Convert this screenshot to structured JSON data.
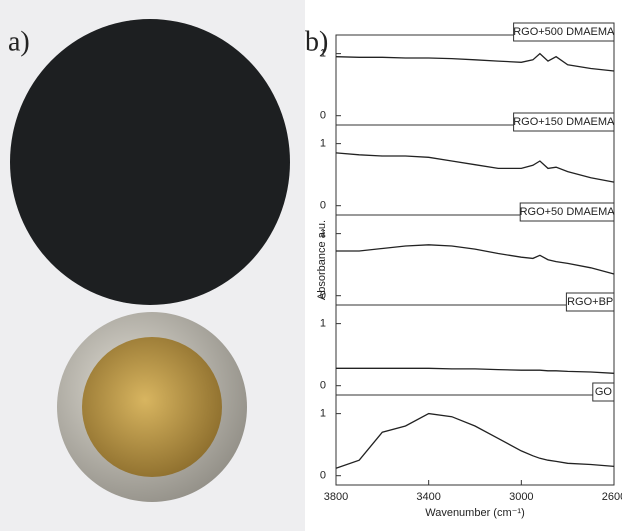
{
  "panel_labels": [
    "a)",
    "b)"
  ],
  "chart_data": {
    "type": "line",
    "xlabel": "Wavenumber (cm⁻¹)",
    "ylabel": "Absorbance a.u.",
    "x": [
      3800,
      3700,
      3600,
      3500,
      3400,
      3300,
      3200,
      3100,
      3000,
      2950,
      2920,
      2885,
      2850,
      2800,
      2700,
      2600
    ],
    "xlim": [
      3800,
      2600
    ],
    "xticks": [
      3800,
      3400,
      3000,
      2600
    ],
    "ylim": [
      -0.15,
      1.3
    ],
    "yticks": [
      0,
      1
    ],
    "series": [
      {
        "name": "RGO+500 DMAEMA",
        "color": "#222222",
        "values": [
          0.95,
          0.94,
          0.94,
          0.93,
          0.93,
          0.92,
          0.9,
          0.88,
          0.86,
          0.9,
          1.0,
          0.88,
          0.95,
          0.82,
          0.76,
          0.72
        ]
      },
      {
        "name": "RGO+150 DMAEMA",
        "color": "#222222",
        "values": [
          0.85,
          0.82,
          0.8,
          0.8,
          0.78,
          0.72,
          0.66,
          0.6,
          0.6,
          0.65,
          0.72,
          0.6,
          0.62,
          0.55,
          0.45,
          0.38
        ]
      },
      {
        "name": "RGO+50 DMAEMA",
        "color": "#222222",
        "values": [
          0.72,
          0.72,
          0.76,
          0.8,
          0.82,
          0.8,
          0.75,
          0.68,
          0.62,
          0.6,
          0.65,
          0.58,
          0.55,
          0.52,
          0.45,
          0.35
        ]
      },
      {
        "name": "RGO+BP",
        "color": "#222222",
        "values": [
          0.28,
          0.28,
          0.28,
          0.28,
          0.28,
          0.27,
          0.27,
          0.26,
          0.25,
          0.25,
          0.25,
          0.24,
          0.24,
          0.23,
          0.22,
          0.2
        ]
      },
      {
        "name": "GO",
        "color": "#222222",
        "values": [
          0.12,
          0.25,
          0.7,
          0.8,
          1.0,
          0.95,
          0.8,
          0.6,
          0.4,
          0.32,
          0.28,
          0.25,
          0.23,
          0.2,
          0.18,
          0.15
        ]
      }
    ]
  }
}
